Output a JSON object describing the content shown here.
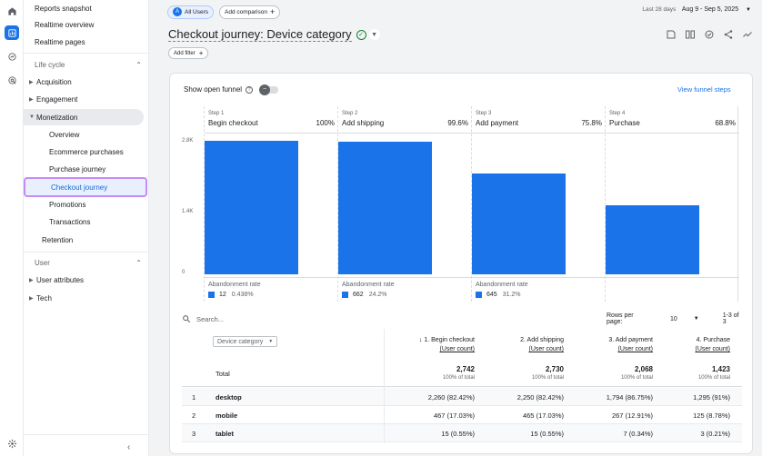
{
  "rail": {
    "icons": [
      "home-icon",
      "reports-icon",
      "explore-icon",
      "advertising-icon",
      "settings-icon"
    ]
  },
  "sidebar": {
    "top_items": [
      "Reports snapshot",
      "Realtime overview",
      "Realtime pages"
    ],
    "section_lifecycle": "Life cycle",
    "lifecycle_items": [
      "Acquisition",
      "Engagement",
      "Monetization"
    ],
    "monetization_items": [
      "Overview",
      "Ecommerce purchases",
      "Purchase journey",
      "Checkout journey",
      "Promotions",
      "Transactions"
    ],
    "retention": "Retention",
    "section_user": "User",
    "user_items": [
      "User attributes",
      "Tech"
    ],
    "collapse_icon": "chevron-left-icon"
  },
  "topbar": {
    "all_users_badge": "A",
    "all_users": "All Users",
    "add_comparison": "Add comparison",
    "range_label": "Last 28 days",
    "range_value": "Aug 9 - Sep 5, 2025"
  },
  "report": {
    "title": "Checkout journey: Device category",
    "add_filter": "Add filter",
    "toolbar_icons": [
      "edit-icon",
      "compare-icon",
      "insights-icon",
      "share-icon",
      "trend-icon"
    ]
  },
  "funnel": {
    "show_open_funnel": "Show open funnel",
    "view_funnel_steps": "View funnel steps",
    "y_ticks": [
      "2.8K",
      "1.4K",
      "0"
    ],
    "abandonment_label": "Abandonment rate",
    "steps": [
      {
        "num": "Step 1",
        "name": "Begin checkout",
        "pct": "100%",
        "value": 2742,
        "ab_count": "12",
        "ab_pct": "0.438%"
      },
      {
        "num": "Step 2",
        "name": "Add shipping",
        "pct": "99.6%",
        "value": 2730,
        "ab_count": "662",
        "ab_pct": "24.2%"
      },
      {
        "num": "Step 3",
        "name": "Add payment",
        "pct": "75.8%",
        "value": 2068,
        "ab_count": "645",
        "ab_pct": "31.2%"
      },
      {
        "num": "Step 4",
        "name": "Purchase",
        "pct": "68.8%",
        "value": 1423,
        "ab_count": "",
        "ab_pct": ""
      }
    ]
  },
  "chart_data": {
    "type": "bar",
    "categories": [
      "Begin checkout",
      "Add shipping",
      "Add payment",
      "Purchase"
    ],
    "values": [
      2742,
      2730,
      2068,
      1423
    ],
    "ylim": [
      0,
      2800
    ],
    "y_ticks": [
      "2.8K",
      "1.4K",
      "0"
    ],
    "color": "#1a73e8"
  },
  "table": {
    "search_placeholder": "Search...",
    "rows_per_page_label": "Rows per page:",
    "rows_per_page_value": "10",
    "pagination": "1-3 of 3",
    "dimension": "Device category",
    "columns": [
      {
        "line1": "↓ 1. Begin checkout",
        "line2": "(User count)"
      },
      {
        "line1": "2. Add shipping",
        "line2": "(User count)"
      },
      {
        "line1": "3. Add payment",
        "line2": "(User count)"
      },
      {
        "line1": "4. Purchase",
        "line2": "(User count)"
      }
    ],
    "total_label": "Total",
    "totals": [
      {
        "value": "2,742",
        "sub": "100% of total"
      },
      {
        "value": "2,730",
        "sub": "100% of total"
      },
      {
        "value": "2,068",
        "sub": "100% of total"
      },
      {
        "value": "1,423",
        "sub": "100% of total"
      }
    ],
    "rows": [
      {
        "idx": "1",
        "name": "desktop",
        "cells": [
          "2,260 (82.42%)",
          "2,250 (82.42%)",
          "1,794 (86.75%)",
          "1,295 (91%)"
        ]
      },
      {
        "idx": "2",
        "name": "mobile",
        "cells": [
          "467 (17.03%)",
          "465 (17.03%)",
          "267 (12.91%)",
          "125 (8.78%)"
        ]
      },
      {
        "idx": "3",
        "name": "tablet",
        "cells": [
          "15 (0.55%)",
          "15 (0.55%)",
          "7 (0.34%)",
          "3 (0.21%)"
        ]
      }
    ]
  }
}
